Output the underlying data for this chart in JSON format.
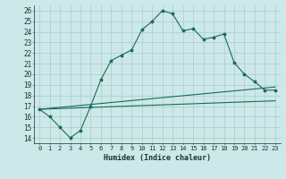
{
  "xlabel": "Humidex (Indice chaleur)",
  "bg_color": "#cce8e8",
  "grid_color": "#aacccc",
  "line_color": "#1a6b5a",
  "xlim": [
    -0.5,
    23.5
  ],
  "ylim": [
    13.5,
    26.5
  ],
  "xticks": [
    0,
    1,
    2,
    3,
    4,
    5,
    6,
    7,
    8,
    9,
    10,
    11,
    12,
    13,
    14,
    15,
    16,
    17,
    18,
    19,
    20,
    21,
    22,
    23
  ],
  "yticks": [
    14,
    15,
    16,
    17,
    18,
    19,
    20,
    21,
    22,
    23,
    24,
    25,
    26
  ],
  "line1_x": [
    0,
    1,
    2,
    3,
    4,
    5,
    6,
    7,
    8,
    9,
    10,
    11,
    12,
    13,
    14,
    15,
    16,
    17,
    18,
    19,
    20,
    21,
    22,
    23
  ],
  "line1_y": [
    16.7,
    16.0,
    15.0,
    14.0,
    14.7,
    17.0,
    19.5,
    21.3,
    21.8,
    22.3,
    24.2,
    25.0,
    26.0,
    25.7,
    24.1,
    24.3,
    23.3,
    23.5,
    23.8,
    21.1,
    20.0,
    19.3,
    18.5,
    18.5
  ],
  "line2_x": [
    0,
    23
  ],
  "line2_y": [
    16.7,
    17.5
  ],
  "line3_x": [
    0,
    23
  ],
  "line3_y": [
    16.7,
    18.8
  ]
}
